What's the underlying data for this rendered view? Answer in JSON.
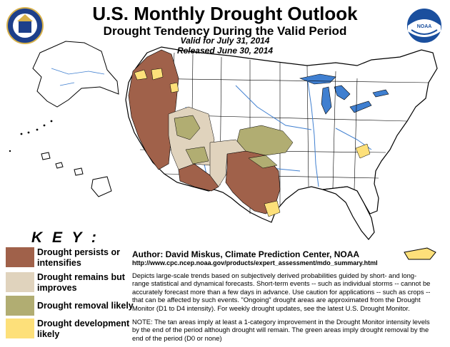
{
  "header": {
    "title": "U.S. Monthly Drought Outlook",
    "subtitle": "Drought Tendency During the Valid Period",
    "valid": "Valid for July 31, 2014",
    "released": "Released June 30, 2014"
  },
  "logos": {
    "left": "department-of-commerce-seal",
    "right": "noaa-logo",
    "right_text": "NOAA"
  },
  "key": {
    "title": "K E Y :",
    "items": [
      {
        "color": "#a0614a",
        "label_line1": "Drought persists or",
        "label_line2": "intensifies"
      },
      {
        "color": "#e0d3bd",
        "label_line1": "Drought remains but",
        "label_line2": "improves"
      },
      {
        "color": "#b1ad72",
        "label_line1": "Drought removal likely",
        "label_line2": ""
      },
      {
        "color": "#fde07a",
        "label_line1": "Drought development",
        "label_line2": "likely"
      }
    ]
  },
  "credits": {
    "author": "Author: David Miskus, Climate Prediction Center, NOAA",
    "url": "http://www.cpc.ncep.noaa.gov/products/expert_assessment/mdo_summary.html",
    "description": "Depicts large-scale trends based on subjectively derived probabilities guided by short- and long-range statistical and dynamical forecasts. Short-term events -- such as individual storms -- cannot be accurately forecast more than a few days in advance. Use caution for applications -- such as crops -- that can be affected by such events. \"Ongoing\" drought areas are approximated from the Drought Monitor (D1 to D4 intensity). For weekly drought updates, see the latest U.S. Drought Monitor.",
    "note": "NOTE: The tan areas imply at least a 1-category improvement in the Drought Monitor intensity levels by the end of the period although drought will remain. The green areas imply drought removal by the end of the period (D0 or none)"
  },
  "colors": {
    "persist": "#a0614a",
    "improve": "#e0d3bd",
    "removal": "#b1ad72",
    "development": "#fde07a",
    "water": "#3f7fd0",
    "land": "#ffffff",
    "border": "#000000"
  }
}
